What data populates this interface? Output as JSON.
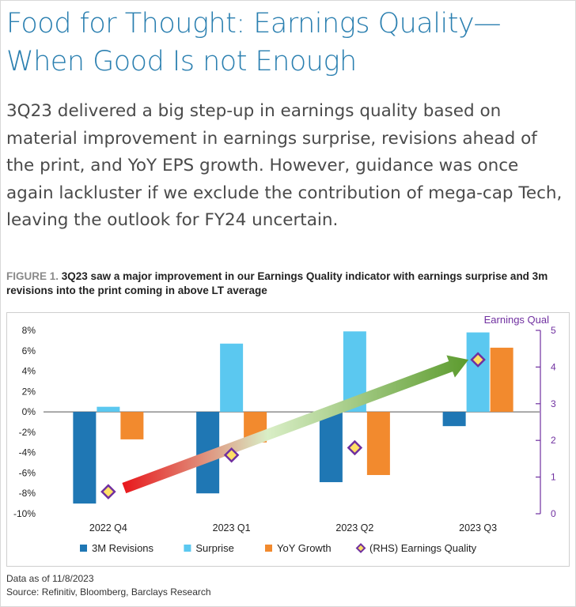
{
  "page": {
    "title": "Food for Thought: Earnings Quality—When Good Is not Enough",
    "summary": "3Q23 delivered a big step-up in earnings quality based on material improvement in earnings surprise, revisions ahead of the print, and YoY EPS growth. However, guidance was once again lackluster if we exclude the contribution of mega-cap Tech, leaving the outlook for FY24 uncertain.",
    "figure_label": "FIGURE 1.",
    "figure_caption": "3Q23 saw a major improvement in our Earnings Quality indicator with earnings surprise and 3m revisions into the print coming in above LT average",
    "data_as_of": "Data as of 11/8/2023",
    "source": "Source: Refinitiv, Bloomberg, Barclays Research"
  },
  "chart_data": {
    "type": "bar",
    "categories": [
      "2022 Q4",
      "2023 Q1",
      "2023 Q2",
      "2023 Q3"
    ],
    "series": [
      {
        "name": "3M Revisions",
        "color": "#1f77b4",
        "values": [
          -9.0,
          -8.0,
          -6.9,
          -1.4
        ]
      },
      {
        "name": "Surprise",
        "color": "#5bc8f0",
        "values": [
          0.5,
          6.7,
          7.9,
          7.8
        ]
      },
      {
        "name": "YoY Growth",
        "color": "#f28a2e",
        "values": [
          -2.7,
          -3.0,
          -6.2,
          6.3
        ]
      }
    ],
    "rhs_series": {
      "name": "(RHS) Earnings Quality",
      "marker_color": "#7030a0",
      "fill": "#ffe066",
      "values": [
        0.6,
        1.6,
        1.8,
        4.2
      ]
    },
    "y_left": {
      "min": -10,
      "max": 8,
      "ticks": [
        "8%",
        "6%",
        "4%",
        "2%",
        "0%",
        "-2%",
        "-4%",
        "-6%",
        "-8%",
        "-10%"
      ],
      "tick_values": [
        8,
        6,
        4,
        2,
        0,
        -2,
        -4,
        -6,
        -8,
        -10
      ]
    },
    "y_right": {
      "label": "Earnings Qual",
      "min": 0,
      "max": 5,
      "ticks": [
        "5",
        "4",
        "3",
        "2",
        "1",
        "0"
      ],
      "tick_values": [
        5,
        4,
        3,
        2,
        1,
        0
      ],
      "color": "#7030a0"
    },
    "trend_arrow": {
      "from": {
        "category": 0,
        "value": 0.7
      },
      "to": {
        "category": 3,
        "value": 4.2
      },
      "colors": [
        "#e8161b",
        "#d9eec6",
        "#5c9b2e"
      ]
    },
    "legend_position": "bottom",
    "grid": false
  }
}
